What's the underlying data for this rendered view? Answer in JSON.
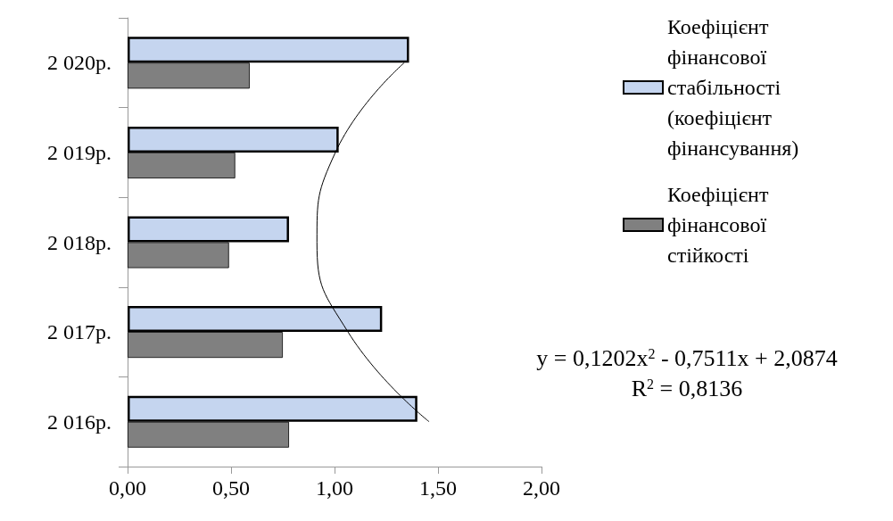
{
  "chart_data": {
    "type": "bar",
    "orientation": "horizontal",
    "categories": [
      "2 020р.",
      "2 019р.",
      "2 018р.",
      "2 017р.",
      "2 016р."
    ],
    "series": [
      {
        "name": "Коефіцієнт фінансової стабільності (коефіцієнт фінансування)",
        "color": "#c5d5ef",
        "values": [
          1.36,
          1.02,
          0.78,
          1.23,
          1.4
        ]
      },
      {
        "name": "Коефіцієнт фінансової стійкості",
        "color": "#808080",
        "values": [
          0.59,
          0.52,
          0.49,
          0.75,
          0.78
        ]
      },
      {
        "type": "line",
        "color": "#000000",
        "values": [
          1.337,
          1.004,
          0.915,
          1.065,
          1.457
        ]
      }
    ],
    "xlim": [
      0,
      2
    ],
    "xticks": [
      {
        "value": 0,
        "label": "0,00"
      },
      {
        "value": 0.5,
        "label": "0,50"
      },
      {
        "value": 1,
        "label": "1,00"
      },
      {
        "value": 1.5,
        "label": "1,50"
      },
      {
        "value": 2,
        "label": "2,00"
      }
    ],
    "grid": false,
    "legend": "right",
    "marker": "none",
    "annotations": [
      "y = 0,1202x$^{2}$ - 0,7511x + 2,0874",
      "R$^{2}$ = 0,8136"
    ]
  }
}
